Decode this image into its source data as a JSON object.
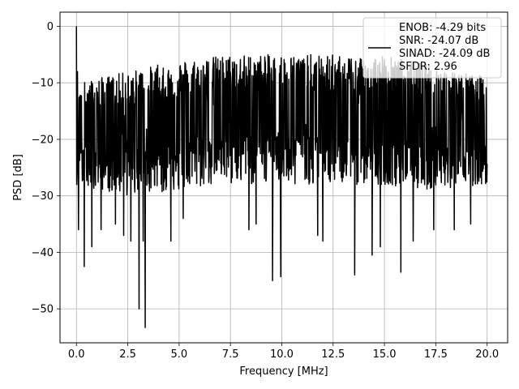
{
  "chart_data": {
    "type": "line",
    "xlabel": "Frequency [MHz]",
    "ylabel": "PSD [dB]",
    "xlim": [
      -0.8,
      21.0
    ],
    "ylim": [
      -56,
      2.5
    ],
    "xticks": [
      0.0,
      2.5,
      5.0,
      7.5,
      10.0,
      12.5,
      15.0,
      17.5,
      20.0
    ],
    "xtick_labels": [
      "0.0",
      "2.5",
      "5.0",
      "7.5",
      "10.0",
      "12.5",
      "15.0",
      "17.5",
      "20.0"
    ],
    "yticks": [
      0,
      -10,
      -20,
      -30,
      -40,
      -50
    ],
    "ytick_labels": [
      "0",
      "−10",
      "−20",
      "−30",
      "−40",
      "−50"
    ],
    "grid": true,
    "legend_position": "top-right",
    "legend_entries": [
      "ENOB: -4.29 bits",
      "SNR: -24.07 dB",
      "SINAD: -24.09 dB",
      "SFDR: 2.96"
    ],
    "series": [
      {
        "color": "#000000",
        "envelope_x": [
          0.0,
          2.5,
          5.0,
          7.5,
          10.0,
          12.5,
          15.0,
          17.5,
          20.0
        ],
        "envelope_upper": [
          -10,
          -8,
          -6,
          -5,
          -5,
          -5,
          -5,
          -7,
          -9
        ],
        "envelope_lower": [
          -28,
          -30,
          -29,
          -28,
          -28,
          -28,
          -28,
          -29,
          -28
        ],
        "peaks": [
          {
            "x": 0.0,
            "y": 0.0
          },
          {
            "x": 0.05,
            "y": -8
          },
          {
            "x": 0.12,
            "y": -20
          }
        ],
        "dips": [
          {
            "x": 0.1,
            "y": -36
          },
          {
            "x": 0.38,
            "y": -42.5
          },
          {
            "x": 0.75,
            "y": -39
          },
          {
            "x": 1.2,
            "y": -36
          },
          {
            "x": 1.9,
            "y": -35
          },
          {
            "x": 2.3,
            "y": -37
          },
          {
            "x": 2.65,
            "y": -38
          },
          {
            "x": 3.05,
            "y": -50
          },
          {
            "x": 3.25,
            "y": -38
          },
          {
            "x": 3.35,
            "y": -53.3
          },
          {
            "x": 4.6,
            "y": -38
          },
          {
            "x": 5.2,
            "y": -34
          },
          {
            "x": 8.4,
            "y": -36
          },
          {
            "x": 8.75,
            "y": -35
          },
          {
            "x": 9.55,
            "y": -45
          },
          {
            "x": 9.95,
            "y": -44.3
          },
          {
            "x": 11.75,
            "y": -37
          },
          {
            "x": 12.0,
            "y": -38
          },
          {
            "x": 13.55,
            "y": -44
          },
          {
            "x": 14.4,
            "y": -40.5
          },
          {
            "x": 14.8,
            "y": -39
          },
          {
            "x": 15.8,
            "y": -43.5
          },
          {
            "x": 16.4,
            "y": -38
          },
          {
            "x": 17.4,
            "y": -36
          },
          {
            "x": 18.4,
            "y": -36
          },
          {
            "x": 19.2,
            "y": -35
          }
        ]
      }
    ]
  }
}
